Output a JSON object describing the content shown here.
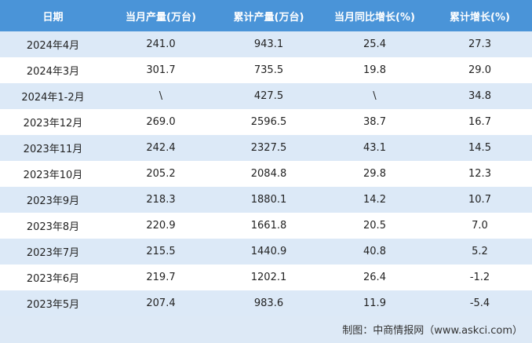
{
  "table": {
    "columns": [
      "日期",
      "当月产量(万台)",
      "累计产量(万台)",
      "当月同比增长(%)",
      "累计增长(%)"
    ],
    "rows": [
      [
        "2024年4月",
        "241.0",
        "943.1",
        "25.4",
        "27.3"
      ],
      [
        "2024年3月",
        "301.7",
        "735.5",
        "19.8",
        "29.0"
      ],
      [
        "2024年1-2月",
        "\\",
        "427.5",
        "\\",
        "34.8"
      ],
      [
        "2023年12月",
        "269.0",
        "2596.5",
        "38.7",
        "16.7"
      ],
      [
        "2023年11月",
        "242.4",
        "2327.5",
        "43.1",
        "14.5"
      ],
      [
        "2023年10月",
        "205.2",
        "2084.8",
        "29.8",
        "12.3"
      ],
      [
        "2023年9月",
        "218.3",
        "1880.1",
        "14.2",
        "10.7"
      ],
      [
        "2023年8月",
        "220.9",
        "1661.8",
        "20.5",
        "7.0"
      ],
      [
        "2023年7月",
        "215.5",
        "1440.9",
        "40.8",
        "5.2"
      ],
      [
        "2023年6月",
        "219.7",
        "1202.1",
        "26.4",
        "-1.2"
      ],
      [
        "2023年5月",
        "207.4",
        "983.6",
        "11.9",
        "-5.4"
      ]
    ]
  },
  "footer": {
    "source": "制图：中商情报网（www.askci.com）"
  }
}
